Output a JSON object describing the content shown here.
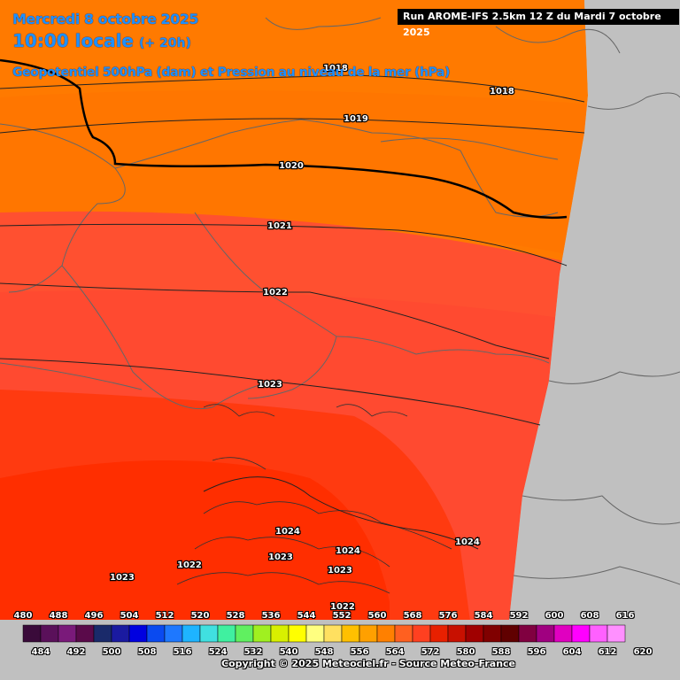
{
  "header": {
    "date": "Mercredi 8 octobre 2025",
    "time": "10:00 locale",
    "lead": "(+ 20h)",
    "parameter": "Geopotentiel 500hPa (dam) et Pression au niveau de la mer (hPa)",
    "run": "Run AROME-IFS 2.5km 12 Z du Mardi 7 octobre 2025"
  },
  "isobars": [
    "1018",
    "1018",
    "1019",
    "1020",
    "1021",
    "1022",
    "1023",
    "1024",
    "1024",
    "1024",
    "1023",
    "1022",
    "1023",
    "1022",
    "1023"
  ],
  "legend": {
    "labels_top": [
      "480",
      "488",
      "496",
      "504",
      "512",
      "520",
      "528",
      "536",
      "544",
      "552",
      "560",
      "568",
      "576",
      "584",
      "592",
      "600",
      "608",
      "616"
    ],
    "labels_bottom": [
      "484",
      "492",
      "500",
      "508",
      "516",
      "524",
      "532",
      "540",
      "548",
      "556",
      "564",
      "572",
      "580",
      "588",
      "596",
      "604",
      "612",
      "620"
    ],
    "colors": [
      "#3a0a3a",
      "#5a105a",
      "#7a1a7a",
      "#5a0a4a",
      "#1a2a6a",
      "#1a1aa0",
      "#0000e0",
      "#0a4af0",
      "#1e78ff",
      "#1eb4ff",
      "#40e0e0",
      "#40f0a0",
      "#60f060",
      "#a0f020",
      "#d8f000",
      "#ffff00",
      "#ffff80",
      "#ffe060",
      "#ffc000",
      "#ffa000",
      "#ff8000",
      "#ff6020",
      "#ff4020",
      "#e82000",
      "#c81000",
      "#a00000",
      "#800000",
      "#600000",
      "#800040",
      "#a00080",
      "#e000c0",
      "#ff00ff",
      "#ff60ff",
      "#ff90ff"
    ]
  },
  "copyright": "Copyright © 2025 Meteociel.fr - Source Meteo-France",
  "colors": {
    "band_1017": "#ff7000",
    "band_1018": "#ff7a00",
    "band_1021": "#ff5030",
    "band_1022": "#ff4630",
    "band_1023": "#ff3a1a",
    "band_1024": "#ff2e00",
    "outside": "#c0c0c0"
  }
}
